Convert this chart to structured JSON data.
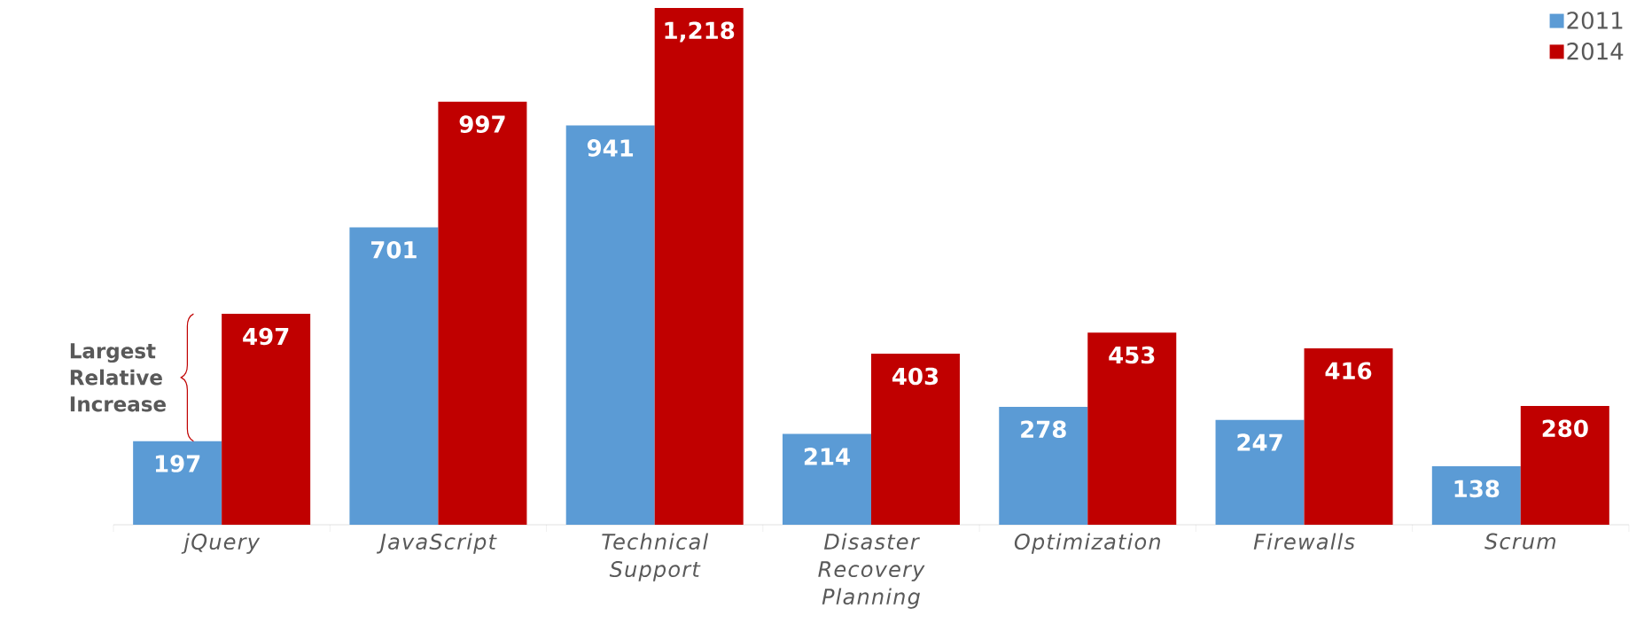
{
  "chart_data": {
    "type": "bar",
    "categories": [
      "jQuery",
      "JavaScript",
      "Technical Support",
      "Disaster Recovery Planning",
      "Optimization",
      "Firewalls",
      "Scrum"
    ],
    "series": [
      {
        "name": "2011",
        "color": "#5b9bd5",
        "values": [
          197,
          701,
          941,
          214,
          278,
          247,
          138
        ],
        "value_labels": [
          "197",
          "701",
          "941",
          "214",
          "278",
          "247",
          "138"
        ]
      },
      {
        "name": "2014",
        "color": "#c00000",
        "values": [
          497,
          997,
          1218,
          403,
          453,
          416,
          280
        ],
        "value_labels": [
          "497",
          "997",
          "1,218",
          "403",
          "453",
          "416",
          "280"
        ]
      }
    ],
    "annotations": [
      "Largest Relative Increase"
    ],
    "legend": "top right"
  }
}
